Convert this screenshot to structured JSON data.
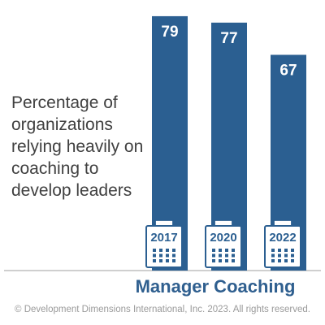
{
  "chart_data": {
    "type": "bar",
    "title": "Manager Coaching",
    "categories": [
      "2017",
      "2020",
      "2022"
    ],
    "values": [
      79,
      77,
      67
    ],
    "data_labels": [
      "79",
      "77",
      "67"
    ],
    "ylim": [
      0,
      81
    ],
    "annotation": "Percentage of organizations relying heavily on coaching to develop leaders",
    "xlabel": "",
    "ylabel": "",
    "grid": false,
    "legend": "none",
    "category_icon": "calendar-icon"
  },
  "colors": {
    "bar": "#2b5f91",
    "title": "#2f5f8f",
    "annotation": "#404040",
    "footer": "#9a9a9a",
    "axis": "#bfbfbf"
  },
  "footer": "© Development Dimensions International, Inc. 2023. All rights reserved."
}
